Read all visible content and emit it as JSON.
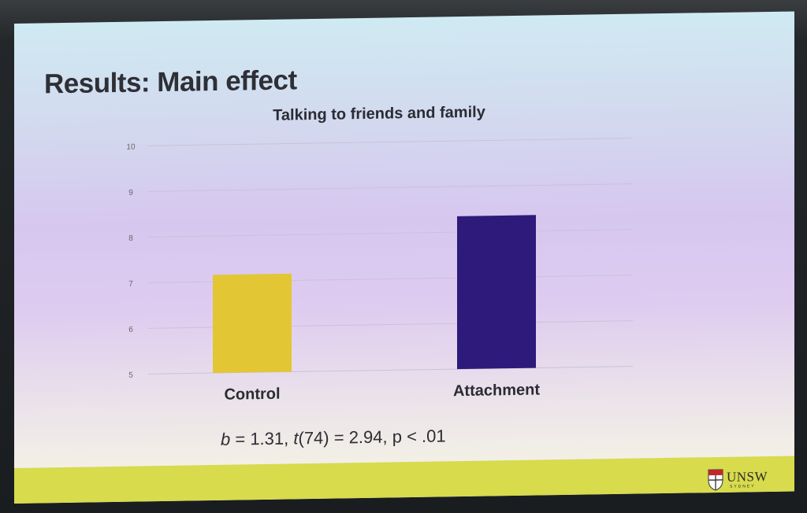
{
  "slide": {
    "title": "Results: Main effect",
    "stats": {
      "b_symbol": "b",
      "b_value": " = 1.31, ",
      "t_symbol": "t",
      "t_rest": "(74) = 2.94, p < .01"
    },
    "logo": {
      "name": "UNSW",
      "subtitle": "SYDNEY"
    },
    "colors": {
      "footer_band": "#d7db4c"
    }
  },
  "chart_data": {
    "type": "bar",
    "title": "Talking to friends and family",
    "categories": [
      "Control",
      "Attachment"
    ],
    "values": [
      7.15,
      8.35
    ],
    "colors": [
      "#e3c634",
      "#2d1a7a"
    ],
    "ylim": [
      5,
      10
    ],
    "yticks": [
      "5",
      "6",
      "7",
      "8",
      "9",
      "10"
    ],
    "grid": true,
    "xlabel": "",
    "ylabel": ""
  }
}
